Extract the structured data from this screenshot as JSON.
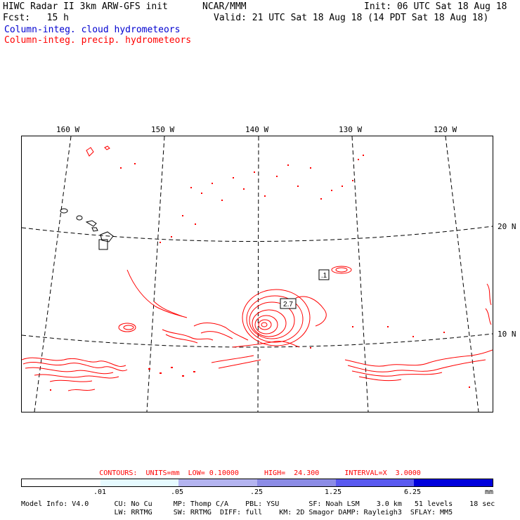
{
  "header": {
    "title_left": "HIWC Radar II 3km ARW-GFS init",
    "title_center": "NCAR/MMM",
    "init": "Init: 06 UTC Sat 18 Aug 18",
    "fcst": "Fcst:   15 h",
    "valid": "Valid: 21 UTC Sat 18 Aug 18 (14 PDT Sat 18 Aug 18)",
    "field1": "Column-integ. cloud hydrometeors",
    "field2": "Column-integ. precip. hydrometeors",
    "field1_color": "#0000d0",
    "field2_color": "#ff0000"
  },
  "map": {
    "lon_labels": [
      "160 W",
      "150 W",
      "140 W",
      "130 W",
      "120 W"
    ],
    "lat_labels": [
      "20 N",
      "10 N"
    ],
    "max_label": "2.7",
    "min_label": ".1",
    "precip_color": "#ff0000"
  },
  "contours_line": "CONTOURS:  UNITS=mm  LOW= 0.10000      HIGH=  24.300      INTERVAL=X  3.0000",
  "scale": {
    "labels": [
      ".01",
      ".05",
      ".25",
      "1.25",
      "6.25"
    ],
    "unit": "mm",
    "colors": [
      "#ffffff",
      "#e6faff",
      "#b4b4f0",
      "#8c8ce6",
      "#5a5af0",
      "#2d2deb",
      "#0000dc"
    ]
  },
  "footer": {
    "line1": "Model Info: V4.0      CU: No Cu     MP: Thomp C/A    PBL: YSU       SF: Noah LSM    3.0 km   51 levels    18 sec",
    "line2": "                      LW: RRTMG     SW: RRTMG  DIFF: full    KM: 2D Smagor DAMP: Rayleigh3  SFLAY: MM5"
  }
}
